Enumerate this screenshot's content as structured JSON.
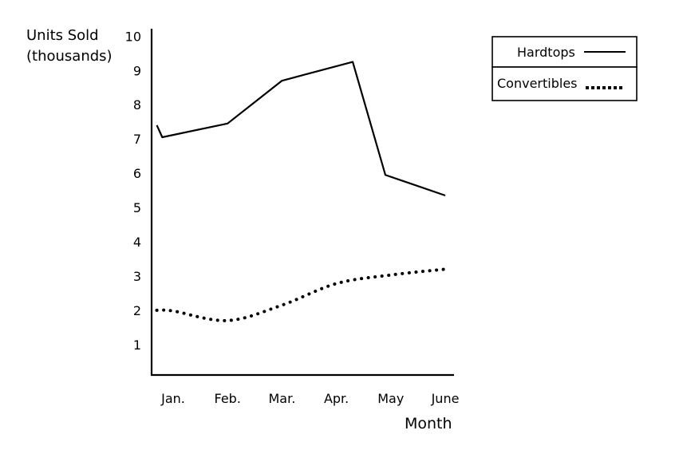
{
  "chart_data": {
    "type": "line",
    "ylabel": "Units Sold",
    "ylabel_unit": "(thousands)",
    "xlabel": "Month",
    "categories": [
      "Jan.",
      "Feb.",
      "Mar.",
      "Apr.",
      "May",
      "June"
    ],
    "y_ticks": [
      "1",
      "2",
      "3",
      "4",
      "5",
      "6",
      "7",
      "8",
      "9",
      "10"
    ],
    "ylim": [
      0,
      10
    ],
    "grid": false,
    "legend_position": "top-right",
    "series": [
      {
        "name": "Hardtops",
        "style": "solid",
        "color": "#000000",
        "points": [
          [
            -0.3,
            7.4
          ],
          [
            -0.2,
            7.05
          ],
          [
            1,
            7.45
          ],
          [
            2,
            8.7
          ],
          [
            3.3,
            9.25
          ],
          [
            3.9,
            5.95
          ],
          [
            5,
            5.35
          ]
        ]
      },
      {
        "name": "Convertibles",
        "style": "dotted",
        "color": "#000000",
        "points": [
          [
            -0.3,
            2.0
          ],
          [
            0,
            1.98
          ],
          [
            1,
            1.7
          ],
          [
            2,
            2.15
          ],
          [
            3,
            2.78
          ],
          [
            4,
            3.03
          ],
          [
            5,
            3.2
          ]
        ]
      }
    ]
  }
}
